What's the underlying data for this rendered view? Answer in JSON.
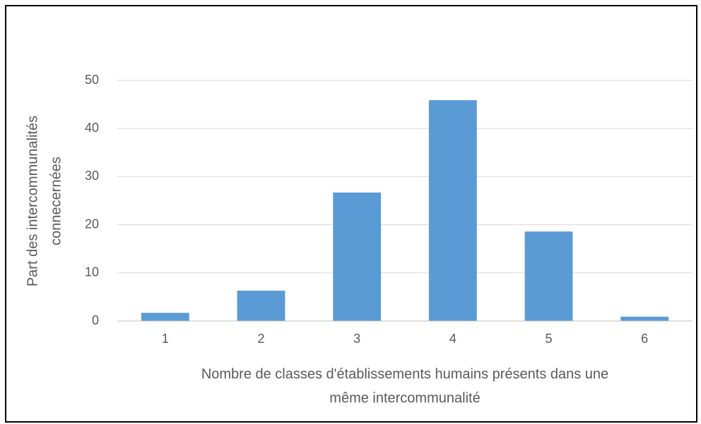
{
  "chart_data": {
    "type": "bar",
    "y_label": [
      "Part des intercommunalités",
      "connecernées"
    ],
    "x_label": [
      "Nombre de classes d'établissements humains présents dans une",
      "même intercommunalité"
    ],
    "categories": [
      "1",
      "2",
      "3",
      "4",
      "5",
      "6"
    ],
    "values": [
      1.7,
      6.3,
      26.7,
      45.9,
      18.6,
      0.9
    ],
    "color": "#5b9bd5",
    "ylim": [
      0,
      50
    ],
    "yticks": [
      0,
      10,
      20,
      30,
      40,
      50
    ],
    "grid": true
  }
}
